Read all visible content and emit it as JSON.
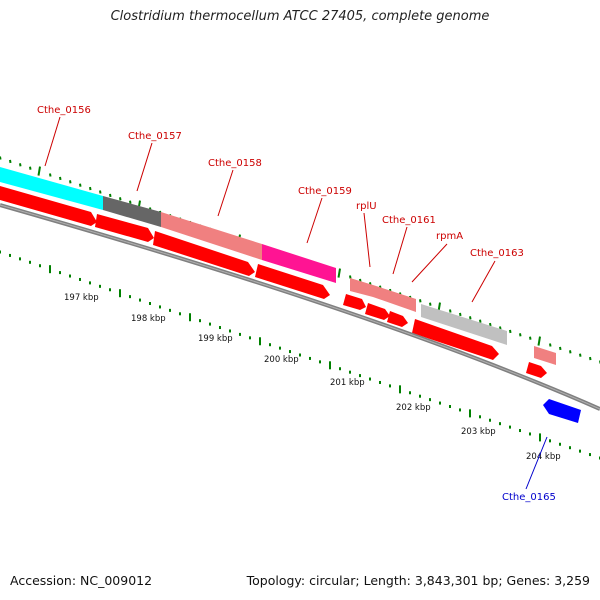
{
  "title": "Clostridium thermocellum ATCC 27405, complete genome",
  "footer": {
    "accession": "Accession: NC_009012",
    "stats": "Topology: circular; Length: 3,843,301 bp; Genes: 3,259"
  },
  "colors": {
    "cds_red": "#ff0000",
    "cds_pink": "#f08080",
    "cds_cyan": "#00ffff",
    "cds_gray": "#666666",
    "cds_lightgray": "#c0c0c0",
    "cds_magenta": "#ff1493",
    "cds_blue": "#0000ff",
    "tick_green": "#008000",
    "backbone": "#808080",
    "label_red": "#cc0000",
    "label_blue": "#0000cc"
  },
  "gene_labels": [
    {
      "text": "Cthe_0156",
      "color": "label_red"
    },
    {
      "text": "Cthe_0157",
      "color": "label_red"
    },
    {
      "text": "Cthe_0158",
      "color": "label_red"
    },
    {
      "text": "Cthe_0159",
      "color": "label_red"
    },
    {
      "text": "rplU",
      "color": "label_red"
    },
    {
      "text": "Cthe_0161",
      "color": "label_red"
    },
    {
      "text": "rpmA",
      "color": "label_red"
    },
    {
      "text": "Cthe_0163",
      "color": "label_red"
    },
    {
      "text": "Cthe_0165",
      "color": "label_blue"
    }
  ],
  "kbp_labels": [
    "197 kbp",
    "198 kbp",
    "199 kbp",
    "200 kbp",
    "201 kbp",
    "202 kbp",
    "203 kbp",
    "204 kbp"
  ]
}
